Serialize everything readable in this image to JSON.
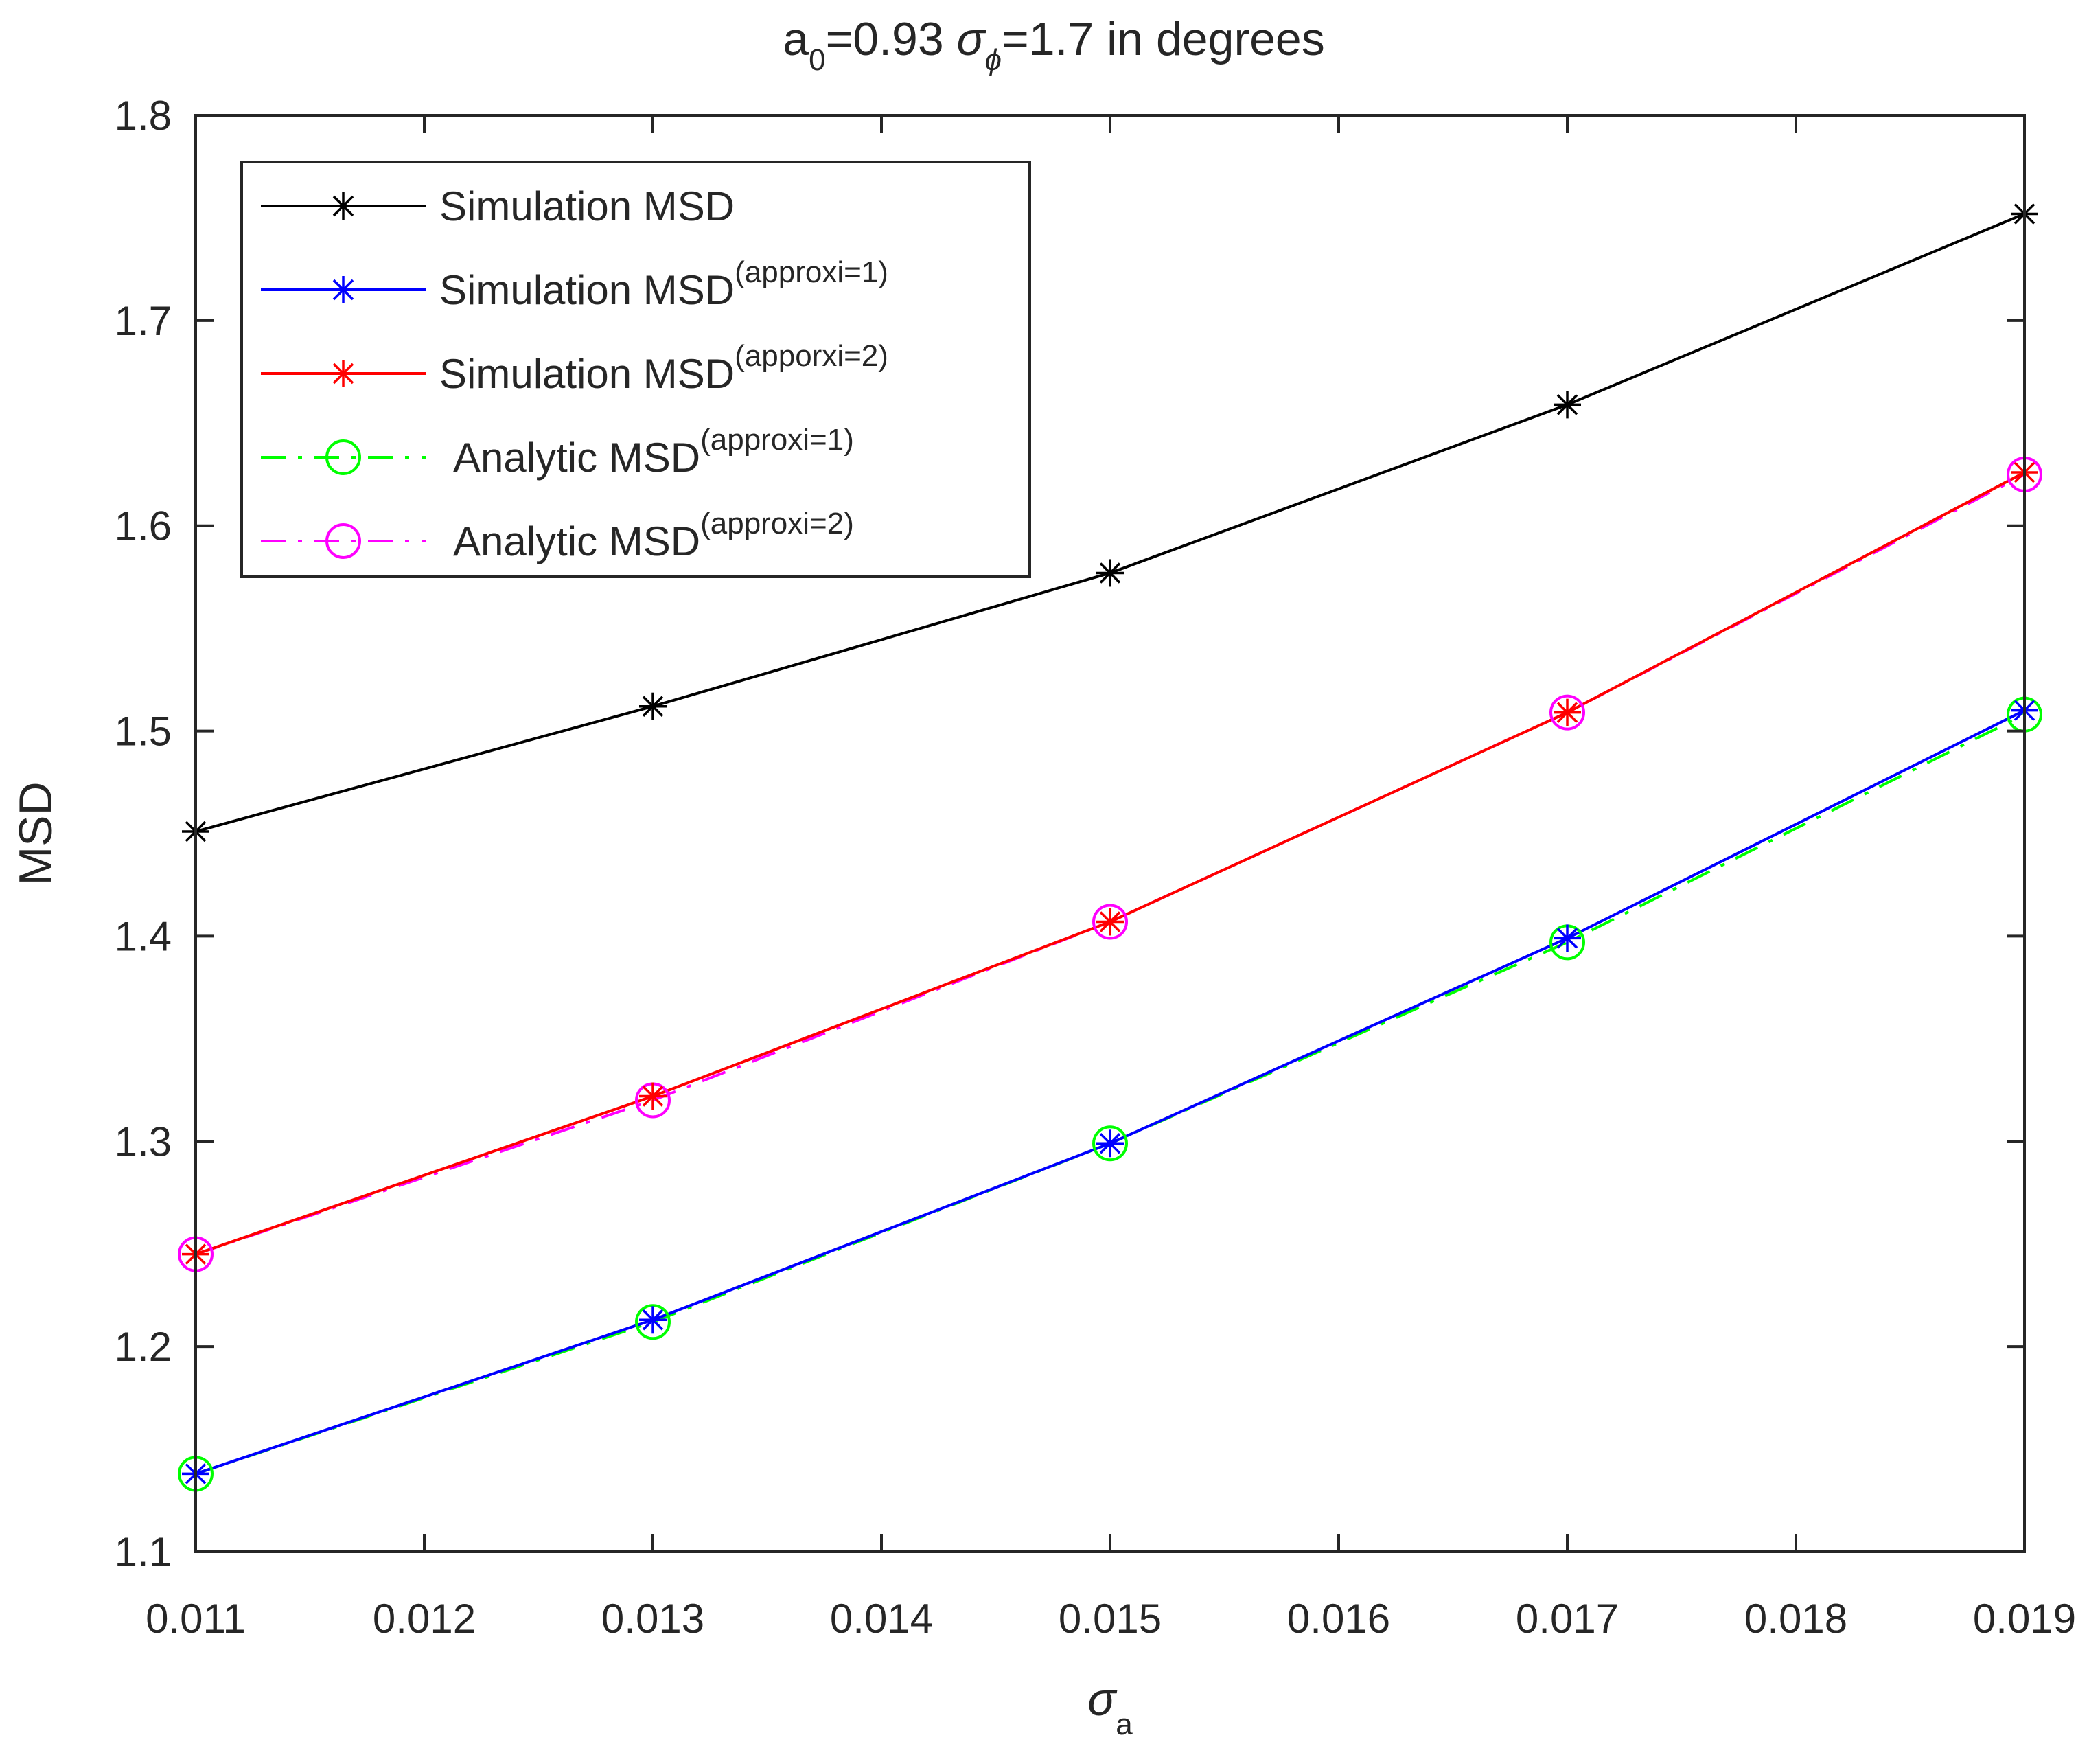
{
  "chart_data": {
    "type": "line",
    "title": {
      "prefix": "a",
      "sub": "0",
      "mid": "=0.93  ",
      "sym": "σ",
      "sym_sub": "ϕ",
      "suffix": "=1.7 in degrees"
    },
    "xlabel": {
      "sym": "σ",
      "sub": "a"
    },
    "ylabel": "MSD",
    "xlim": [
      0.011,
      0.019
    ],
    "ylim": [
      1.1,
      1.8
    ],
    "xticks": [
      0.011,
      0.012,
      0.013,
      0.014,
      0.015,
      0.016,
      0.017,
      0.018,
      0.019
    ],
    "xtick_labels": [
      "0.011",
      "0.012",
      "0.013",
      "0.014",
      "0.015",
      "0.016",
      "0.017",
      "0.018",
      "0.019"
    ],
    "yticks": [
      1.1,
      1.2,
      1.3,
      1.4,
      1.5,
      1.6,
      1.7,
      1.8
    ],
    "ytick_labels": [
      "1.1",
      "1.2",
      "1.3",
      "1.4",
      "1.5",
      "1.6",
      "1.7",
      "1.8"
    ],
    "grid": false,
    "legend_position": "top-left",
    "x": [
      0.011,
      0.013,
      0.015,
      0.017,
      0.019
    ],
    "series": [
      {
        "name": "Simulation MSD",
        "sup": "",
        "color": "#000000",
        "marker": "star",
        "dash": "solid",
        "values": [
          1.451,
          1.512,
          1.577,
          1.659,
          1.752
        ]
      },
      {
        "name": "Simulation MSD",
        "sup": "(approxi=1)",
        "color": "#0000ff",
        "marker": "star",
        "dash": "solid",
        "values": [
          1.138,
          1.213,
          1.299,
          1.399,
          1.51
        ]
      },
      {
        "name": "Simulation MSD",
        "sup": "(apporxi=2)",
        "color": "#ff0000",
        "marker": "star",
        "dash": "solid",
        "values": [
          1.245,
          1.322,
          1.407,
          1.509,
          1.626
        ]
      },
      {
        "name": " Analytic  MSD",
        "sup": "(approxi=1)",
        "color": "#00ff00",
        "marker": "circle",
        "dash": "dashdot",
        "values": [
          1.138,
          1.212,
          1.299,
          1.397,
          1.508
        ]
      },
      {
        "name": " Analytic  MSD",
        "sup": "(approxi=2)",
        "color": "#ff00ff",
        "marker": "circle",
        "dash": "dashdot",
        "values": [
          1.245,
          1.32,
          1.407,
          1.509,
          1.625
        ]
      }
    ]
  }
}
